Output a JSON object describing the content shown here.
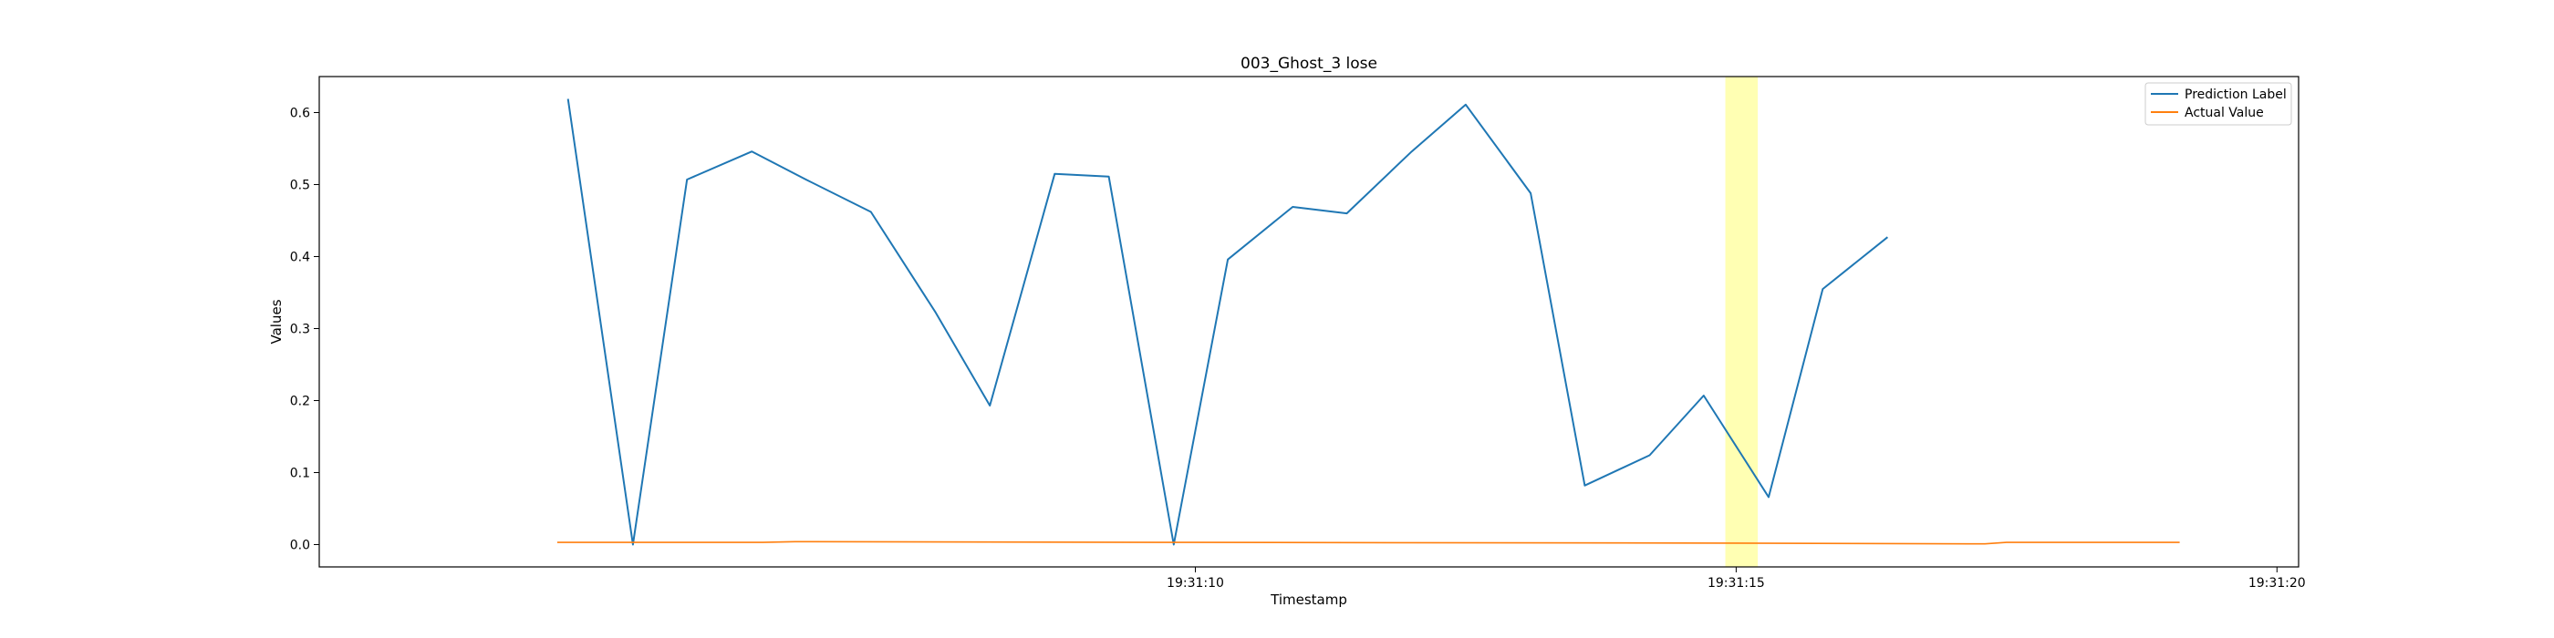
{
  "chart_data": {
    "type": "line",
    "title": "003_Ghost_3 lose",
    "xlabel": "Timestamp",
    "ylabel": "Values",
    "xaxis": {
      "ticks": [
        {
          "t": 10,
          "label": "19:31:10"
        },
        {
          "t": 15,
          "label": "19:31:15"
        },
        {
          "t": 20,
          "label": "19:31:20"
        }
      ],
      "xlim": [
        "19:31:01.9",
        "19:31:20.2"
      ]
    },
    "yaxis": {
      "ticks": [
        {
          "v": 0.0,
          "label": "0.0"
        },
        {
          "v": 0.1,
          "label": "0.1"
        },
        {
          "v": 0.2,
          "label": "0.2"
        },
        {
          "v": 0.3,
          "label": "0.3"
        },
        {
          "v": 0.4,
          "label": "0.4"
        },
        {
          "v": 0.5,
          "label": "0.5"
        },
        {
          "v": 0.6,
          "label": "0.6"
        }
      ],
      "ylim": [
        -0.031,
        0.65
      ]
    },
    "grid": false,
    "legend_position": "top-right",
    "highlight": {
      "x_start": "19:31:14.9",
      "x_end": "19:31:15.2",
      "color": "#ffff99"
    },
    "series": [
      {
        "name": "Prediction Label",
        "color": "#1f77b4",
        "points": [
          {
            "x": "19:31:04.2",
            "y": 0.619
          },
          {
            "x": "19:31:04.8",
            "y": 0.0
          },
          {
            "x": "19:31:05.3",
            "y": 0.507
          },
          {
            "x": "19:31:05.9",
            "y": 0.546
          },
          {
            "x": "19:31:06.4",
            "y": 0.507
          },
          {
            "x": "19:31:07.0",
            "y": 0.462
          },
          {
            "x": "19:31:07.6",
            "y": 0.322
          },
          {
            "x": "19:31:08.1",
            "y": 0.193
          },
          {
            "x": "19:31:08.7",
            "y": 0.515
          },
          {
            "x": "19:31:09.2",
            "y": 0.511
          },
          {
            "x": "19:31:09.8",
            "y": 0.0
          },
          {
            "x": "19:31:10.3",
            "y": 0.396
          },
          {
            "x": "19:31:10.9",
            "y": 0.469
          },
          {
            "x": "19:31:11.4",
            "y": 0.46
          },
          {
            "x": "19:31:12.0",
            "y": 0.546
          },
          {
            "x": "19:31:12.5",
            "y": 0.611
          },
          {
            "x": "19:31:13.1",
            "y": 0.488
          },
          {
            "x": "19:31:13.6",
            "y": 0.082
          },
          {
            "x": "19:31:14.2",
            "y": 0.124
          },
          {
            "x": "19:31:14.7",
            "y": 0.207
          },
          {
            "x": "19:31:15.3",
            "y": 0.066
          },
          {
            "x": "19:31:15.8",
            "y": 0.355
          },
          {
            "x": "19:31:16.4",
            "y": 0.427
          }
        ]
      },
      {
        "name": "Actual Value",
        "color": "#ff7f0e",
        "points": [
          {
            "x": "19:31:04.1",
            "y": 0.003
          },
          {
            "x": "19:31:06.0",
            "y": 0.003
          },
          {
            "x": "19:31:06.3",
            "y": 0.004
          },
          {
            "x": "19:31:10.0",
            "y": 0.003
          },
          {
            "x": "19:31:15.0",
            "y": 0.002
          },
          {
            "x": "19:31:17.3",
            "y": 0.001
          },
          {
            "x": "19:31:17.5",
            "y": 0.003
          },
          {
            "x": "19:31:19.1",
            "y": 0.003
          }
        ]
      }
    ]
  }
}
